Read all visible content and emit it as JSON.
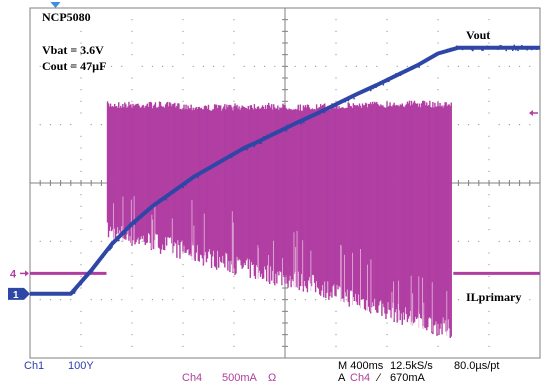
{
  "colors": {
    "background": "#ffffff",
    "grid": "#808080",
    "ch1": "#2e47a6",
    "ch4": "#b13ea2",
    "readout_blue": "#2b3fa8",
    "readout_magenta": "#b0409a",
    "trigger": "#3a8ee6"
  },
  "annotations": {
    "device": "NCP5080",
    "vbat": "Vbat = 3.6V",
    "cout": "Cout = 47µF",
    "vout_label": "Vout",
    "il_label": "ILprimary"
  },
  "markers": {
    "ch1": "1",
    "ch4": "4"
  },
  "readout": {
    "ch1_name": "Ch1",
    "ch1_scale": "100Y",
    "ch4_name": "Ch4",
    "ch4_scale": "500mA",
    "ch4_unit": "Ω",
    "timebase": "M 400ms",
    "sample_rate": "12.5kS/s",
    "resolution": "80.0µs/pt",
    "trigger_mode": "A",
    "trigger_source": "Ch4",
    "trigger_slope": "∕",
    "trigger_level": "670mA"
  },
  "chart_data": [
    {
      "type": "line",
      "series": [
        {
          "name": "Vout",
          "x": [
            0,
            0.3,
            0.6,
            0.8,
            1.2,
            1.6,
            2.0,
            2.4,
            2.8,
            3.2,
            3.6,
            3.9,
            4.2,
            4.5,
            4.8,
            5.2,
            5.6,
            6.0,
            6.4,
            6.8,
            7.2,
            7.6,
            8.0,
            8.4,
            8.8,
            9.2,
            9.6,
            10.0
          ],
          "y": [
            1.1,
            1.1,
            1.1,
            1.1,
            1.5,
            1.95,
            2.3,
            2.6,
            2.85,
            3.1,
            3.3,
            3.45,
            3.6,
            3.72,
            3.85,
            4.02,
            4.18,
            4.35,
            4.52,
            4.68,
            4.85,
            5.02,
            5.22,
            5.32,
            5.32,
            5.32,
            5.32,
            5.32
          ]
        }
      ],
      "x_div": [
        0,
        10
      ],
      "y_div": [
        0,
        6
      ],
      "grid": true
    },
    {
      "type": "area",
      "series": [
        {
          "name": "ILprimary",
          "x": [
            0,
            1.5,
            1.52,
            2.5,
            3.5,
            4.5,
            5.5,
            6.5,
            7.5,
            8.27,
            8.3,
            10.0
          ],
          "baseline": 1.45,
          "peak_high": [
            1.45,
            1.45,
            4.4,
            4.4,
            4.35,
            4.38,
            4.35,
            4.4,
            4.42,
            4.4,
            1.45,
            1.45
          ],
          "envelope_low": [
            1.45,
            1.45,
            2.0,
            1.8,
            1.55,
            1.3,
            1.1,
            0.8,
            0.5,
            0.3,
            1.45,
            1.45
          ]
        }
      ],
      "x_div": [
        0,
        10
      ],
      "y_div": [
        0,
        6
      ],
      "grid": true
    }
  ]
}
